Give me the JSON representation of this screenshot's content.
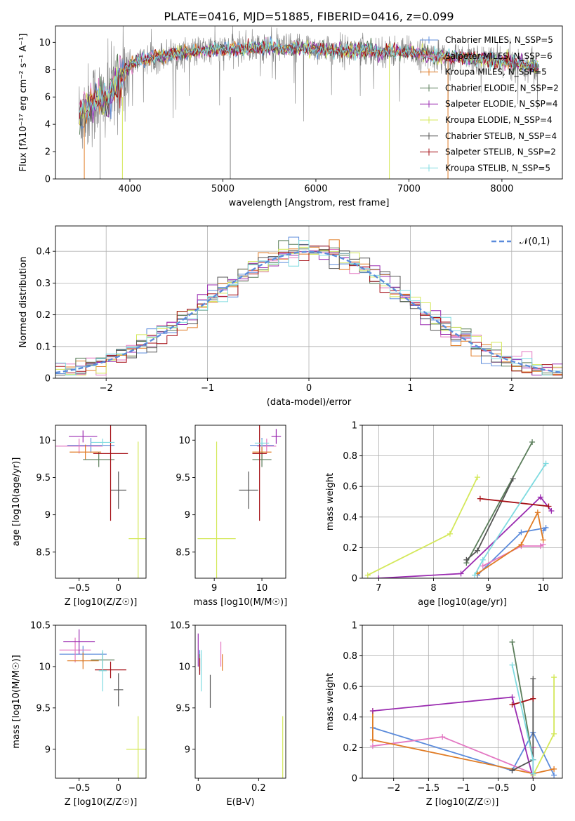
{
  "title": "PLATE=0416, MJD=51885, FIBERID=0416, z=0.099",
  "series_styles": [
    {
      "name": "Chabrier MILES, N_SSP=5",
      "color": "#5b8bdb"
    },
    {
      "name": "Salpeter MILES, N_SSP=6",
      "color": "#e377c2"
    },
    {
      "name": "Kroupa MILES, N_SSP=5",
      "color": "#e07b24"
    },
    {
      "name": "Chabrier ELODIE, N_SSP=2",
      "color": "#5a7d5a"
    },
    {
      "name": "Salpeter ELODIE, N_SSP=4",
      "color": "#9a2bb0"
    },
    {
      "name": "Kroupa ELODIE, N_SSP=4",
      "color": "#d4e85a"
    },
    {
      "name": "Chabrier STELIB, N_SSP=4",
      "color": "#555555"
    },
    {
      "name": "Salpeter STELIB, N_SSP=2",
      "color": "#a50f15"
    },
    {
      "name": "Kroupa STELIB, N_SSP=5",
      "color": "#7fdbe0"
    }
  ],
  "chart_data": [
    {
      "id": "spectrum",
      "type": "line",
      "xlabel": "wavelength [Angstrom, rest frame]",
      "ylabel": "Flux [fλ10⁻¹⁷ erg cm⁻² s⁻¹ A⁻¹]",
      "xlim": [
        3200,
        8650
      ],
      "ylim": [
        0,
        11.2
      ],
      "xticks": [
        4000,
        5000,
        6000,
        7000,
        8000
      ],
      "yticks": [
        0,
        2,
        4,
        6,
        8,
        10
      ],
      "legend_position": "right",
      "legend": [
        "Chabrier MILES, N_SSP=5",
        "Salpeter MILES, N_SSP=6",
        "Kroupa MILES, N_SSP=5",
        "Chabrier ELODIE, N_SSP=2",
        "Salpeter ELODIE, N_SSP=4",
        "Kroupa ELODIE, N_SSP=4",
        "Chabrier STELIB, N_SSP=4",
        "Salpeter STELIB, N_SSP=2",
        "Kroupa STELIB, N_SSP=5"
      ],
      "model_continuum": {
        "x": [
          3450,
          3550,
          3650,
          3700,
          3800,
          3900,
          3950,
          4000,
          4100,
          4300,
          4500,
          4700,
          4900,
          5100,
          5300,
          5500,
          5700,
          5900,
          6100,
          6300,
          6500,
          6700,
          6900,
          7100,
          7300,
          7500,
          7700,
          7900,
          8100,
          8300,
          8400
        ],
        "y": [
          4.5,
          5.2,
          5.9,
          5.6,
          6.3,
          7.5,
          7.9,
          8.3,
          8.7,
          9.0,
          9.2,
          9.3,
          9.5,
          9.5,
          9.6,
          9.6,
          9.55,
          9.6,
          9.5,
          9.4,
          9.4,
          9.35,
          9.3,
          9.2,
          9.0,
          8.9,
          8.8,
          8.7,
          8.5,
          8.3,
          8.2
        ]
      }
    },
    {
      "id": "residuals",
      "type": "histogram",
      "xlabel": "(data-model)/error",
      "ylabel": "Normed distribution",
      "xlim": [
        -2.5,
        2.5
      ],
      "ylim": [
        0,
        0.48
      ],
      "xticks": [
        -2,
        -1,
        0,
        1,
        2
      ],
      "yticks": [
        0.0,
        0.1,
        0.2,
        0.3,
        0.4
      ],
      "grid": true,
      "legend": [
        "𝒩(0,1)"
      ],
      "legend_position": "top-right",
      "bin_width": 0.1,
      "bin_start": -2.5
    },
    {
      "id": "age-vs-Z",
      "type": "scatter",
      "xlabel": "Z [log10(Z/Z☉)]",
      "ylabel": "age  [log10(age/yr)]",
      "xlim": [
        -0.8,
        0.35
      ],
      "ylim": [
        8.15,
        10.2
      ],
      "xticks": [
        -0.5,
        0.0
      ],
      "yticks": [
        8.5,
        9.0,
        9.5,
        10.0
      ],
      "points": [
        {
          "s": 0,
          "x": -0.35,
          "y": 9.93,
          "xerr": 0.3,
          "yerr": 0.1
        },
        {
          "s": 1,
          "x": -0.5,
          "y": 9.92,
          "xerr": 0.3,
          "yerr": 0.1
        },
        {
          "s": 2,
          "x": -0.42,
          "y": 9.84,
          "xerr": 0.2,
          "yerr": 0.1
        },
        {
          "s": 3,
          "x": -0.25,
          "y": 9.74,
          "xerr": 0.2,
          "yerr": 0.1
        },
        {
          "s": 4,
          "x": -0.45,
          "y": 10.05,
          "xerr": 0.18,
          "yerr": 0.08
        },
        {
          "s": 5,
          "x": 0.25,
          "y": 8.68,
          "xerr": 0.12,
          "yerr": 1.3
        },
        {
          "s": 6,
          "x": 0.0,
          "y": 9.33,
          "xerr": 0.1,
          "yerr": 0.25
        },
        {
          "s": 7,
          "x": -0.1,
          "y": 9.82,
          "xerr": 0.22,
          "yerr": 0.9
        },
        {
          "s": 8,
          "x": -0.2,
          "y": 9.97,
          "xerr": 0.15,
          "yerr": 0.05
        }
      ]
    },
    {
      "id": "age-vs-mass",
      "type": "scatter",
      "xlabel": "mass [log10(M/M☉)]",
      "ylabel": "",
      "xlim": [
        8.6,
        10.5
      ],
      "ylim": [
        8.15,
        10.2
      ],
      "xticks": [
        9,
        10
      ],
      "yticks": [
        8.5,
        9.0,
        9.5,
        10.0
      ],
      "points": [
        {
          "s": 0,
          "x": 10.0,
          "y": 9.93,
          "xerr": 0.25,
          "yerr": 0.1
        },
        {
          "s": 1,
          "x": 10.1,
          "y": 9.92,
          "xerr": 0.2,
          "yerr": 0.1
        },
        {
          "s": 2,
          "x": 10.0,
          "y": 9.84,
          "xerr": 0.2,
          "yerr": 0.1
        },
        {
          "s": 3,
          "x": 10.0,
          "y": 9.74,
          "xerr": 0.2,
          "yerr": 0.1
        },
        {
          "s": 4,
          "x": 10.3,
          "y": 10.05,
          "xerr": 0.1,
          "yerr": 0.1
        },
        {
          "s": 5,
          "x": 9.05,
          "y": 8.68,
          "xerr": 0.4,
          "yerr": 1.3
        },
        {
          "s": 6,
          "x": 9.72,
          "y": 9.33,
          "xerr": 0.2,
          "yerr": 0.25
        },
        {
          "s": 7,
          "x": 9.95,
          "y": 9.82,
          "xerr": 0.15,
          "yerr": 0.9
        },
        {
          "s": 8,
          "x": 10.0,
          "y": 9.96,
          "xerr": 0.15,
          "yerr": 0.05
        }
      ]
    },
    {
      "id": "weight-vs-age",
      "type": "line",
      "xlabel": "age  [log10(age/yr)]",
      "ylabel": "mass weight",
      "xlim": [
        6.7,
        10.35
      ],
      "ylim": [
        0,
        1.0
      ],
      "xticks": [
        7,
        8,
        9,
        10
      ],
      "yticks": [
        0.0,
        0.2,
        0.4,
        0.6,
        0.8,
        1.0
      ],
      "grid": true,
      "series": [
        {
          "s": 0,
          "x": [
            8.8,
            9.6,
            10.05,
            10.0
          ],
          "y": [
            0.02,
            0.3,
            0.33,
            0.31
          ]
        },
        {
          "s": 1,
          "x": [
            8.9,
            9.6,
            9.95,
            10.0
          ],
          "y": [
            0.08,
            0.21,
            0.21,
            0.22
          ]
        },
        {
          "s": 2,
          "x": [
            8.8,
            9.6,
            9.9,
            10.0
          ],
          "y": [
            0.03,
            0.22,
            0.43,
            0.25
          ]
        },
        {
          "s": 3,
          "x": [
            8.6,
            9.8
          ],
          "y": [
            0.1,
            0.89
          ]
        },
        {
          "s": 4,
          "x": [
            7.0,
            8.5,
            9.95,
            10.15
          ],
          "y": [
            0.0,
            0.03,
            0.53,
            0.44
          ]
        },
        {
          "s": 5,
          "x": [
            6.8,
            8.3,
            8.8
          ],
          "y": [
            0.02,
            0.29,
            0.66
          ]
        },
        {
          "s": 6,
          "x": [
            8.6,
            8.8,
            9.45
          ],
          "y": [
            0.12,
            0.18,
            0.65
          ]
        },
        {
          "s": 7,
          "x": [
            8.85,
            10.1
          ],
          "y": [
            0.52,
            0.47
          ]
        },
        {
          "s": 8,
          "x": [
            8.75,
            8.9,
            10.05
          ],
          "y": [
            0.02,
            0.12,
            0.75
          ]
        }
      ]
    },
    {
      "id": "mass-vs-Z",
      "type": "scatter",
      "xlabel": "Z [log10(Z/Z☉)]",
      "ylabel": "mass [log10(M/M☉)]",
      "xlim": [
        -0.8,
        0.35
      ],
      "ylim": [
        8.65,
        10.5
      ],
      "xticks": [
        -0.5,
        0.0
      ],
      "yticks": [
        9.0,
        9.5,
        10.0,
        10.5
      ],
      "points": [
        {
          "s": 0,
          "x": -0.45,
          "y": 10.15,
          "xerr": 0.3,
          "yerr": 0.1
        },
        {
          "s": 1,
          "x": -0.55,
          "y": 10.2,
          "xerr": 0.2,
          "yerr": 0.15
        },
        {
          "s": 2,
          "x": -0.45,
          "y": 10.07,
          "xerr": 0.2,
          "yerr": 0.1
        },
        {
          "s": 3,
          "x": -0.2,
          "y": 10.08,
          "xerr": 0.15,
          "yerr": 0.1
        },
        {
          "s": 4,
          "x": -0.5,
          "y": 10.3,
          "xerr": 0.2,
          "yerr": 0.15
        },
        {
          "s": 5,
          "x": 0.25,
          "y": 9.0,
          "xerr": 0.15,
          "yerr": 0.4
        },
        {
          "s": 6,
          "x": 0.0,
          "y": 9.72,
          "xerr": 0.06,
          "yerr": 0.2
        },
        {
          "s": 7,
          "x": -0.1,
          "y": 9.96,
          "xerr": 0.2,
          "yerr": 0.1
        },
        {
          "s": 8,
          "x": -0.2,
          "y": 9.95,
          "xerr": 0.05,
          "yerr": 0.25
        }
      ]
    },
    {
      "id": "mass-vs-EBV",
      "type": "scatter",
      "xlabel": "E(B-V)",
      "ylabel": "",
      "xlim": [
        -0.01,
        0.29
      ],
      "ylim": [
        8.65,
        10.5
      ],
      "xticks": [
        0.0,
        0.2
      ],
      "yticks": [
        9.0,
        9.5,
        10.0,
        10.5
      ],
      "points": [
        {
          "s": 0,
          "x": 0.005,
          "y": 10.05,
          "xerr": 0,
          "yerr": 0.15
        },
        {
          "s": 1,
          "x": 0.075,
          "y": 10.15,
          "xerr": 0,
          "yerr": 0.15
        },
        {
          "s": 2,
          "x": 0.08,
          "y": 10.05,
          "xerr": 0,
          "yerr": 0.1
        },
        {
          "s": 3,
          "x": 0.005,
          "y": 10.05,
          "xerr": 0,
          "yerr": 0.1
        },
        {
          "s": 4,
          "x": 0.0,
          "y": 10.2,
          "xerr": 0,
          "yerr": 0.2
        },
        {
          "s": 5,
          "x": 0.28,
          "y": 9.0,
          "xerr": 0,
          "yerr": 0.4
        },
        {
          "s": 6,
          "x": 0.04,
          "y": 9.7,
          "xerr": 0,
          "yerr": 0.2
        },
        {
          "s": 7,
          "x": 0.005,
          "y": 10.0,
          "xerr": 0,
          "yerr": 0.1
        },
        {
          "s": 8,
          "x": 0.01,
          "y": 9.95,
          "xerr": 0,
          "yerr": 0.25
        }
      ]
    },
    {
      "id": "weight-vs-Z",
      "type": "line",
      "xlabel": "Z [log10(Z/Z☉)]",
      "ylabel": "mass weight",
      "xlim": [
        -2.45,
        0.42
      ],
      "ylim": [
        0,
        1.0
      ],
      "xticks": [
        -2.0,
        -1.5,
        -1.0,
        -0.5,
        0.0
      ],
      "yticks": [
        0.0,
        0.2,
        0.4,
        0.6,
        0.8,
        1.0
      ],
      "grid": true,
      "series": [
        {
          "s": 0,
          "x": [
            -2.3,
            -0.3,
            0.0,
            0.3
          ],
          "y": [
            0.33,
            0.05,
            0.3,
            0.02
          ]
        },
        {
          "s": 1,
          "x": [
            -2.3,
            -1.3,
            0.0,
            0.0
          ],
          "y": [
            0.21,
            0.27,
            0.03,
            0.2
          ]
        },
        {
          "s": 2,
          "x": [
            -2.3,
            -2.3,
            0.0,
            0.3
          ],
          "y": [
            0.44,
            0.25,
            0.03,
            0.06
          ]
        },
        {
          "s": 3,
          "x": [
            -0.3,
            0.0
          ],
          "y": [
            0.89,
            0.12
          ]
        },
        {
          "s": 4,
          "x": [
            -2.3,
            -0.3,
            0.0,
            0.0
          ],
          "y": [
            0.44,
            0.53,
            0.0,
            0.03
          ]
        },
        {
          "s": 5,
          "x": [
            0.3,
            0.3,
            0.0
          ],
          "y": [
            0.66,
            0.29,
            0.02
          ]
        },
        {
          "s": 6,
          "x": [
            0.0,
            0.0,
            -0.3
          ],
          "y": [
            0.65,
            0.12,
            0.05
          ]
        },
        {
          "s": 7,
          "x": [
            -0.3,
            0.0
          ],
          "y": [
            0.48,
            0.52
          ]
        },
        {
          "s": 8,
          "x": [
            -0.3,
            0.0,
            0.0
          ],
          "y": [
            0.74,
            0.12,
            0.03
          ]
        }
      ]
    }
  ]
}
